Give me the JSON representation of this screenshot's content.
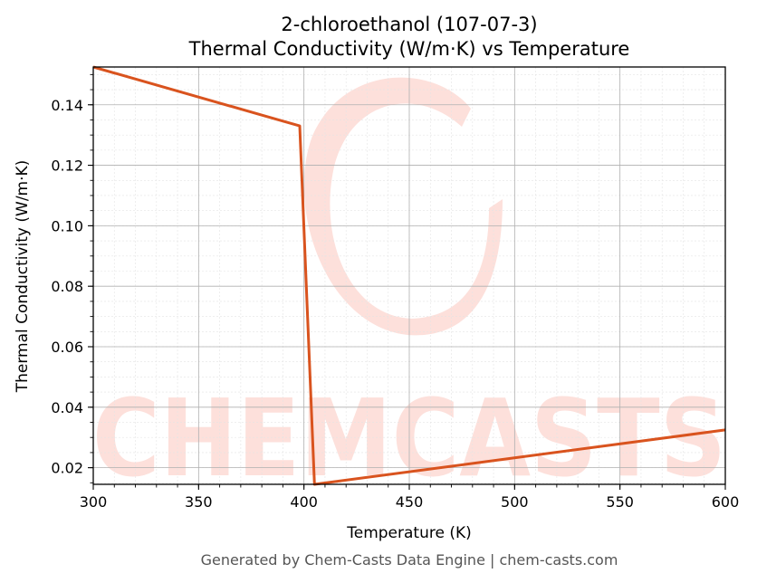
{
  "chart_data": {
    "type": "line",
    "title": "2-chloroethanol (107-07-3)",
    "subtitle": "Thermal Conductivity (W/m·K) vs Temperature",
    "xlabel": "Temperature (K)",
    "ylabel": "Thermal Conductivity (W/m·K)",
    "xlim": [
      300,
      600
    ],
    "ylim": [
      0.0145,
      0.1525
    ],
    "x_ticks": [
      300,
      350,
      400,
      450,
      500,
      550,
      600
    ],
    "y_ticks": [
      0.02,
      0.04,
      0.06,
      0.08,
      0.1,
      0.12,
      0.14
    ],
    "grid": true,
    "legend": "none",
    "series": [
      {
        "color": "#d9531e",
        "points": [
          {
            "x": 300,
            "y": 0.1525
          },
          {
            "x": 398,
            "y": 0.133
          },
          {
            "x": 405,
            "y": 0.0145
          },
          {
            "x": 600,
            "y": 0.0325
          }
        ]
      }
    ]
  },
  "watermark": {
    "text": "CHEMCASTS",
    "color": "#fde0db"
  },
  "footer": "Generated by Chem-Casts Data Engine | chem-casts.com"
}
